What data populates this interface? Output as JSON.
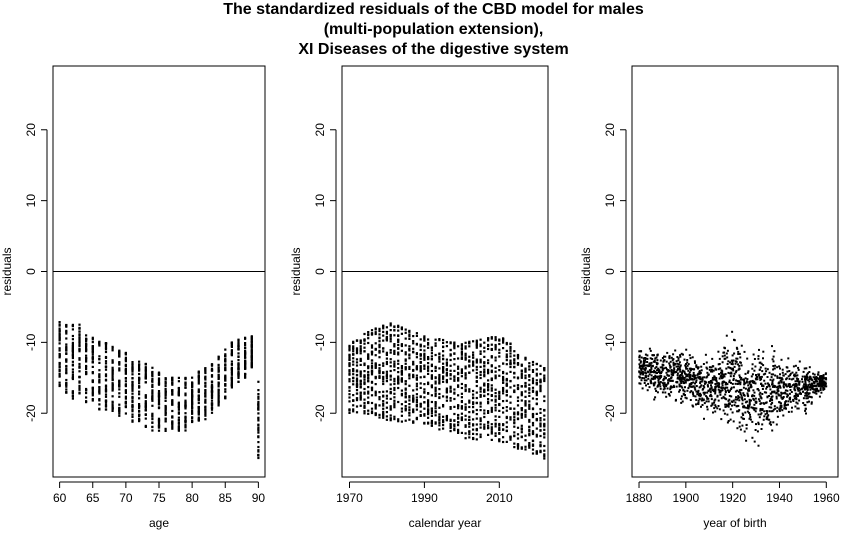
{
  "title_lines": [
    "The standardized residuals of the CBD model for males",
    "(multi-population extension),",
    "XI Diseases of the digestive system"
  ],
  "chart_data": [
    {
      "type": "scatter",
      "xlabel": "age",
      "ylabel": "residuals",
      "xlim": [
        59,
        91
      ],
      "ylim": [
        -29,
        29
      ],
      "xticks": [
        60,
        65,
        70,
        75,
        80,
        85,
        90
      ],
      "yticks": [
        -20,
        -10,
        0,
        10,
        20
      ],
      "hline": 0,
      "point_summary": [
        {
          "x": 60,
          "min": -17,
          "max": -6.5
        },
        {
          "x": 61,
          "min": -17.5,
          "max": -7.5
        },
        {
          "x": 62,
          "min": -18,
          "max": -7.5
        },
        {
          "x": 63,
          "min": -18,
          "max": -7.5
        },
        {
          "x": 64,
          "min": -18.5,
          "max": -9
        },
        {
          "x": 65,
          "min": -19,
          "max": -9
        },
        {
          "x": 66,
          "min": -19.5,
          "max": -9.5
        },
        {
          "x": 67,
          "min": -19.5,
          "max": -10
        },
        {
          "x": 68,
          "min": -20,
          "max": -10.5
        },
        {
          "x": 69,
          "min": -20.5,
          "max": -11
        },
        {
          "x": 70,
          "min": -21,
          "max": -11.5
        },
        {
          "x": 71,
          "min": -21.5,
          "max": -12
        },
        {
          "x": 72,
          "min": -22,
          "max": -12.5
        },
        {
          "x": 73,
          "min": -22,
          "max": -13
        },
        {
          "x": 74,
          "min": -22.5,
          "max": -13.5
        },
        {
          "x": 75,
          "min": -22.5,
          "max": -14
        },
        {
          "x": 76,
          "min": -22.5,
          "max": -14.5
        },
        {
          "x": 77,
          "min": -22.5,
          "max": -15
        },
        {
          "x": 78,
          "min": -22.5,
          "max": -15
        },
        {
          "x": 79,
          "min": -22.5,
          "max": -15
        },
        {
          "x": 80,
          "min": -22,
          "max": -14.5
        },
        {
          "x": 81,
          "min": -21.5,
          "max": -14
        },
        {
          "x": 82,
          "min": -21,
          "max": -13.5
        },
        {
          "x": 83,
          "min": -20,
          "max": -13
        },
        {
          "x": 84,
          "min": -19,
          "max": -12
        },
        {
          "x": 85,
          "min": -18,
          "max": -11
        },
        {
          "x": 86,
          "min": -17,
          "max": -10
        },
        {
          "x": 87,
          "min": -16,
          "max": -9.5
        },
        {
          "x": 88,
          "min": -15,
          "max": -9
        },
        {
          "x": 89,
          "min": -14,
          "max": -9
        },
        {
          "x": 90,
          "min": -26.5,
          "max": -15.5
        }
      ]
    },
    {
      "type": "scatter",
      "xlabel": "calendar year",
      "ylabel": "residuals",
      "xlim": [
        1968,
        2023
      ],
      "ylim": [
        -29,
        29
      ],
      "xticks": [
        1970,
        1990,
        2010
      ],
      "yticks": [
        -20,
        -10,
        0,
        10,
        20
      ],
      "hline": 0,
      "point_summary": [
        {
          "x": 1970,
          "min": -20,
          "max": -10
        },
        {
          "x": 1980,
          "min": -21,
          "max": -7
        },
        {
          "x": 1990,
          "min": -21.5,
          "max": -9
        },
        {
          "x": 2000,
          "min": -23.5,
          "max": -10
        },
        {
          "x": 2010,
          "min": -24,
          "max": -9
        },
        {
          "x": 2022,
          "min": -26.5,
          "max": -13.5
        }
      ]
    },
    {
      "type": "scatter",
      "xlabel": "year of birth",
      "ylabel": "residuals",
      "xlim": [
        1877,
        1965
      ],
      "ylim": [
        -29,
        29
      ],
      "xticks": [
        1880,
        1900,
        1920,
        1940,
        1960
      ],
      "yticks": [
        -20,
        -10,
        0,
        10,
        20
      ],
      "hline": 0,
      "point_summary": [
        {
          "x": 1880,
          "min": -17,
          "max": -10
        },
        {
          "x": 1890,
          "min": -19,
          "max": -10
        },
        {
          "x": 1900,
          "min": -20,
          "max": -10
        },
        {
          "x": 1910,
          "min": -22,
          "max": -11
        },
        {
          "x": 1918,
          "min": -24,
          "max": -7
        },
        {
          "x": 1925,
          "min": -25,
          "max": -9
        },
        {
          "x": 1932,
          "min": -26.5,
          "max": -9
        },
        {
          "x": 1940,
          "min": -22,
          "max": -11
        },
        {
          "x": 1950,
          "min": -21,
          "max": -12
        },
        {
          "x": 1960,
          "min": -17,
          "max": -14
        }
      ]
    }
  ]
}
